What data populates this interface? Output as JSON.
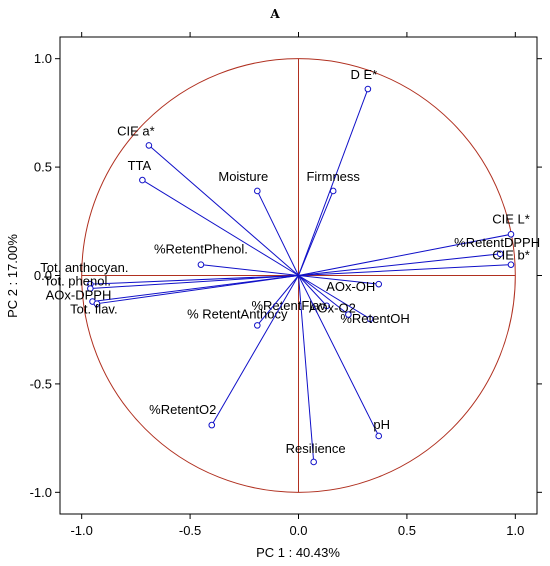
{
  "panel_label": "A",
  "chart_data": {
    "type": "scatter",
    "subtype": "pca-loading-plot",
    "xlabel": "PC 1 : 40.43%",
    "ylabel": "PC 2 : 17.00%",
    "xlim": [
      -1.1,
      1.1
    ],
    "ylim": [
      -1.1,
      1.1
    ],
    "xticks": [
      "-1.0",
      "-0.5",
      "0.0",
      "0.5",
      "1.0"
    ],
    "yticks": [
      "1.0",
      "0.5",
      "0.0",
      "-0.5",
      "-1.0"
    ],
    "unit_circle_radius": 1.0,
    "grid": false,
    "colors": {
      "vectors": "#1010c8",
      "circle": "#b03020",
      "zero_lines": "#b03020",
      "frame": "#000000"
    },
    "points": [
      {
        "label": "D E*",
        "x": 0.32,
        "y": 0.86
      },
      {
        "label": "CIE a*",
        "x": -0.69,
        "y": 0.6
      },
      {
        "label": "TTA",
        "x": -0.72,
        "y": 0.44
      },
      {
        "label": "Moisture",
        "x": -0.19,
        "y": 0.39
      },
      {
        "label": "Firmness",
        "x": 0.16,
        "y": 0.39
      },
      {
        "label": "CIE L*",
        "x": 0.98,
        "y": 0.19
      },
      {
        "label": "%RetentDPPH",
        "x": 0.93,
        "y": 0.1
      },
      {
        "label": "CIE b*",
        "x": 0.98,
        "y": 0.05
      },
      {
        "label": "%RetentPhenol.",
        "x": -0.45,
        "y": 0.05
      },
      {
        "label": "Tot. anthocyan.",
        "x": -0.96,
        "y": -0.04
      },
      {
        "label": "Tot. phenol.",
        "x": -0.96,
        "y": -0.06
      },
      {
        "label": "AOx-DPPH",
        "x": -0.95,
        "y": -0.12
      },
      {
        "label": "Tot. flav.",
        "x": -0.93,
        "y": -0.13
      },
      {
        "label": "AOx-OH",
        "x": 0.37,
        "y": -0.04
      },
      {
        "label": "%RetentFlav",
        "x": 0.13,
        "y": -0.14
      },
      {
        "label": "%RetentOH",
        "x": 0.33,
        "y": -0.2
      },
      {
        "label": "AOx-O2",
        "x": 0.23,
        "y": -0.18
      },
      {
        "label": "% RetentAnthocy",
        "x": -0.19,
        "y": -0.23
      },
      {
        "label": "%RetentO2",
        "x": -0.4,
        "y": -0.69
      },
      {
        "label": "pH",
        "x": 0.37,
        "y": -0.74
      },
      {
        "label": "Resilience",
        "x": 0.07,
        "y": -0.86
      }
    ]
  }
}
